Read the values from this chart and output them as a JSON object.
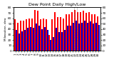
{
  "title": "Dew Point Daily High/Low",
  "ylabel_left": "Milwaukee, dew",
  "days": [
    "1",
    "2",
    "3",
    "4",
    "5",
    "6",
    "7",
    "8",
    "9",
    "10",
    "11",
    "12",
    "13",
    "14",
    "15",
    "16",
    "17",
    "18",
    "19",
    "20",
    "21",
    "22",
    "23",
    "24",
    "25",
    "26",
    "27",
    "28",
    "29",
    "30"
  ],
  "highs": [
    58,
    52,
    55,
    55,
    58,
    60,
    60,
    75,
    74,
    58,
    60,
    58,
    30,
    58,
    72,
    62,
    62,
    60,
    68,
    68,
    72,
    75,
    72,
    72,
    74,
    70,
    72,
    68,
    68,
    64
  ],
  "lows": [
    38,
    32,
    36,
    38,
    42,
    44,
    42,
    50,
    46,
    40,
    44,
    38,
    20,
    26,
    42,
    35,
    35,
    38,
    46,
    46,
    52,
    55,
    50,
    52,
    55,
    52,
    54,
    50,
    52,
    48
  ],
  "high_color": "#ff0000",
  "low_color": "#0000cc",
  "ylim": [
    0,
    80
  ],
  "yticks": [
    0,
    10,
    20,
    30,
    40,
    50,
    60,
    70,
    80
  ],
  "background_color": "#ffffff",
  "dotted_line_x": [
    20.5,
    21.5
  ],
  "title_fontsize": 4.5,
  "tick_fontsize": 3.0,
  "label_fontsize": 3.0
}
